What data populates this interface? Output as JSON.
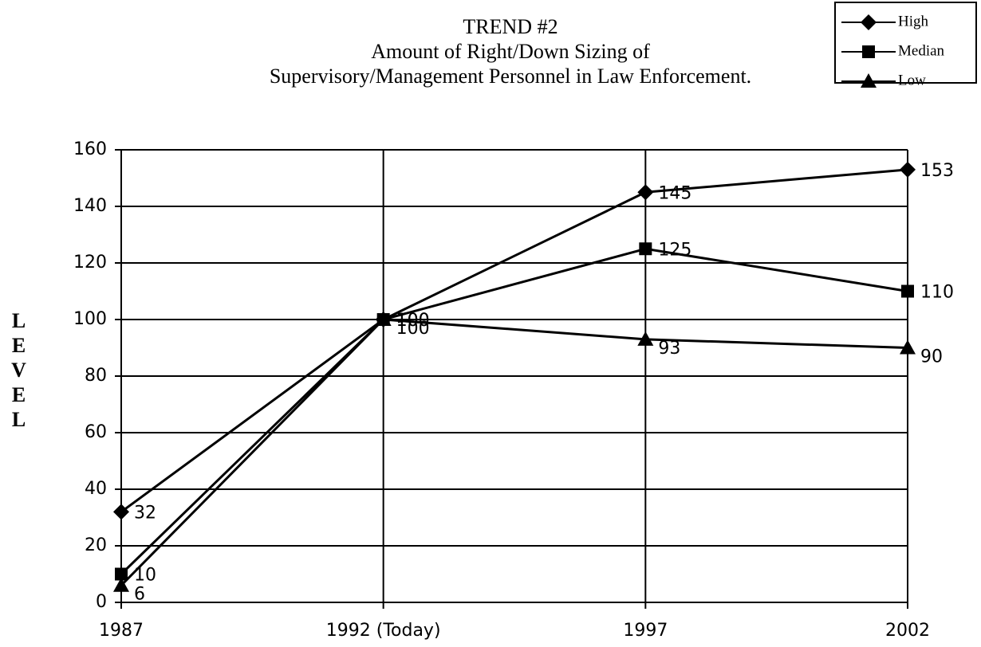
{
  "chart_data": {
    "type": "line",
    "title": [
      "TREND #2",
      "Amount of Right/Down Sizing of",
      "Supervisory/Management Personnel in Law Enforcement."
    ],
    "y_label": "LEVEL",
    "categories": [
      "1987",
      "1992 (Today)",
      "1997",
      "2002"
    ],
    "series": [
      {
        "name": "High",
        "color": "#000000",
        "marker": "diamond",
        "values": [
          32,
          100,
          145,
          153
        ]
      },
      {
        "name": "Median",
        "color": "#000000",
        "marker": "square",
        "values": [
          10,
          100,
          125,
          110
        ]
      },
      {
        "name": "Low",
        "color": "#000000",
        "marker": "triangle",
        "values": [
          6,
          100,
          93,
          90
        ]
      }
    ],
    "ylim": [
      0,
      160
    ],
    "yticks": [
      0,
      20,
      40,
      60,
      80,
      100,
      120,
      140,
      160
    ],
    "grid": true,
    "legend": "top-right"
  }
}
